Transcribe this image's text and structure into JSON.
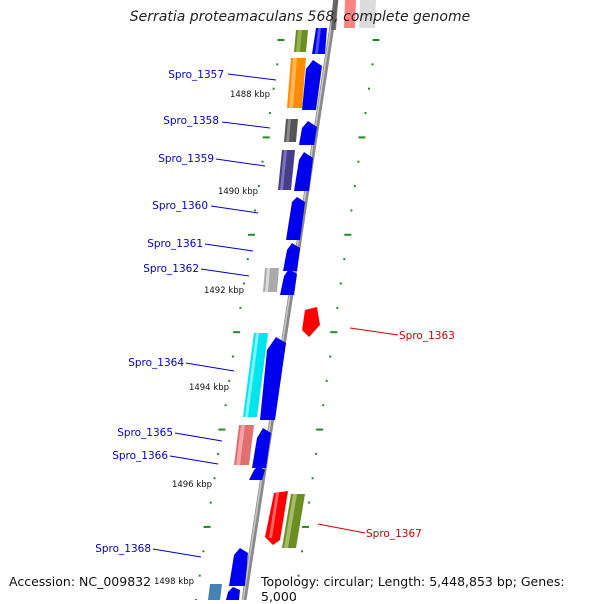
{
  "title": "Serratia proteamaculans 568, complete genome",
  "accession": "Accession: NC_009832",
  "topology": "Topology: circular; Length: 5,448,853 bp; Genes: 5,000",
  "kbp_labels": [
    "1488 kbp",
    "1490 kbp",
    "1492 kbp",
    "1494 kbp",
    "1496 kbp",
    "1498 kbp"
  ],
  "genes_minus_strand": [
    {
      "name": "Spro_1357",
      "color": "#ff8c00"
    },
    {
      "name": "Spro_1358",
      "color": "#555555"
    },
    {
      "name": "Spro_1359",
      "color": "#483d8b"
    },
    {
      "name": "Spro_1360",
      "color": "#0000ff"
    },
    {
      "name": "Spro_1361",
      "color": "#0000ff"
    },
    {
      "name": "Spro_1362",
      "color": "#aaaaaa"
    },
    {
      "name": "Spro_1364",
      "color": "#00e5ee"
    },
    {
      "name": "Spro_1365",
      "color": "#e07070"
    },
    {
      "name": "Spro_1366",
      "color": "#0000ff"
    },
    {
      "name": "Spro_1368",
      "color": "#0000ff"
    }
  ],
  "genes_plus_strand": [
    {
      "name": "Spro_1363",
      "color": "#ff0000"
    },
    {
      "name": "Spro_1367",
      "color": "#ff0000"
    }
  ],
  "colors": {
    "label_blue": "#0000cc",
    "label_red": "#cc0000",
    "backbone": "#888888",
    "tick_green": "#228b22",
    "olive": "#6b8e23"
  }
}
